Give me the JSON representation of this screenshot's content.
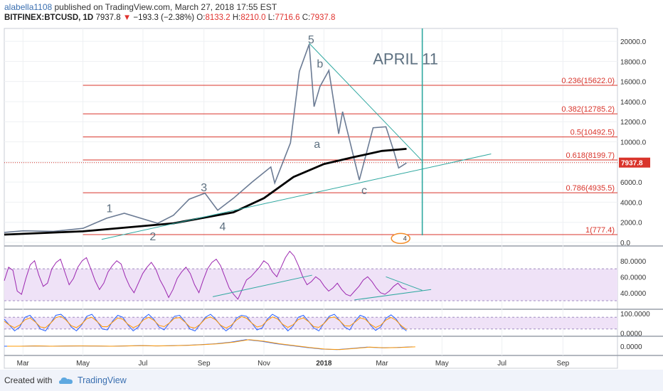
{
  "header": {
    "user": "alabella1108",
    "published": " published on TradingView.com, March 27, 2018 17:55 EST",
    "symbol": "BITFINEX:BTCUSD, 1D",
    "last": "7937.8",
    "arrow": "▼",
    "change": "−193.3 (−2.38%)",
    "o_label": "O:",
    "o_value": "8133.2",
    "h_label": "H:",
    "h_value": "8210.0",
    "l_label": "L:",
    "l_value": "7716.6",
    "c_label": "C:",
    "c_value": "7937.8"
  },
  "footer": {
    "created_with": "Created with",
    "brand": "TradingView"
  },
  "colors": {
    "price_bar": "#6b7b94",
    "ma": "#000000",
    "fib": "#d9342b",
    "trend": "#2fa8a0",
    "rsi": "#9c27b0",
    "stoch_k": "#2962ff",
    "stoch_d": "#ff9800",
    "band": "#efe2f7"
  },
  "chart_data": [
    {
      "type": "line",
      "title": "",
      "price_axis": {
        "ticks": [
          "20000.0",
          "18000.0",
          "16000.0",
          "14000.0",
          "12000.0",
          "10000.0",
          "8000.0",
          "6000.0",
          "4000.0",
          "2000.0",
          "0.0"
        ],
        "ylim": [
          0,
          20500
        ],
        "current_price": "7937.8"
      },
      "time_axis": {
        "ticks": [
          "Mar",
          "May",
          "Jul",
          "Sep",
          "Nov",
          "2018",
          "Mar",
          "May",
          "Jul",
          "Sep"
        ]
      },
      "series": [
        {
          "x": [
            "2017-02-10",
            "2017-03-01",
            "2017-04-01",
            "2017-05-01",
            "2017-05-25",
            "2017-06-12",
            "2017-07-16",
            "2017-08-01",
            "2017-08-17",
            "2017-09-02",
            "2017-09-15",
            "2017-10-01",
            "2017-10-20",
            "2017-11-08",
            "2017-11-12",
            "2017-11-28",
            "2017-12-07",
            "2017-12-17",
            "2017-12-22",
            "2017-12-28",
            "2018-01-06",
            "2018-01-16",
            "2018-01-20",
            "2018-02-06",
            "2018-02-20",
            "2018-03-05",
            "2018-03-13",
            "2018-03-18",
            "2018-03-26"
          ],
          "values": [
            1000,
            1150,
            1100,
            1400,
            2400,
            2900,
            1900,
            2700,
            4300,
            4900,
            3200,
            4400,
            6000,
            7500,
            5900,
            9900,
            17000,
            19700,
            13500,
            15500,
            17100,
            10800,
            13000,
            6200,
            11400,
            11500,
            9100,
            7400,
            7900
          ]
        },
        {
          "x": [
            "2017-02-10",
            "2017-05-01",
            "2017-08-01",
            "2017-10-01",
            "2017-11-01",
            "2017-12-01",
            "2018-01-01",
            "2018-02-01",
            "2018-03-01",
            "2018-03-26"
          ],
          "values": [
            780,
            1100,
            1900,
            3000,
            4400,
            6500,
            7800,
            8500,
            9100,
            9300
          ]
        }
      ],
      "annotations": [
        {
          "text": "APRIL 11"
        },
        {
          "text": "1"
        },
        {
          "text": "2"
        },
        {
          "text": "3"
        },
        {
          "text": "4"
        },
        {
          "text": "5"
        },
        {
          "text": "a"
        },
        {
          "text": "b"
        },
        {
          "text": "c"
        }
      ],
      "fib_levels": [
        {
          "label": "0.236(15622.0)",
          "value": 15622.0
        },
        {
          "label": "0.382(12785.2)",
          "value": 12785.2
        },
        {
          "label": "0.5(10492.5)",
          "value": 10492.5
        },
        {
          "label": "0.618(8199.7)",
          "value": 8199.7
        },
        {
          "label": "0.786(4935.5)",
          "value": 4935.5
        },
        {
          "label": "1(777.4)",
          "value": 777.4
        }
      ],
      "event_marker": "4"
    },
    {
      "type": "line",
      "title": "",
      "ticks": [
        "80.0000",
        "60.0000",
        "40.0000"
      ],
      "ylim": [
        22,
        95
      ],
      "band": [
        30,
        70
      ],
      "values": [
        55,
        72,
        68,
        42,
        38,
        58,
        75,
        80,
        62,
        48,
        52,
        70,
        78,
        82,
        66,
        50,
        58,
        72,
        80,
        84,
        70,
        55,
        44,
        52,
        66,
        74,
        80,
        76,
        60,
        48,
        40,
        52,
        64,
        72,
        78,
        70,
        56,
        46,
        34,
        44,
        58,
        66,
        72,
        64,
        50,
        40,
        56,
        70,
        78,
        82,
        74,
        60,
        46,
        38,
        32,
        44,
        56,
        60,
        66,
        72,
        80,
        76,
        66,
        60,
        72,
        84,
        92,
        86,
        74,
        60,
        50,
        54,
        60,
        56,
        48,
        42,
        46,
        52,
        44,
        38,
        36,
        42,
        48,
        56,
        60,
        54,
        46,
        40,
        38,
        42,
        48,
        52,
        46,
        44
      ]
    },
    {
      "type": "line",
      "title": "",
      "ticks": [
        "100.0000",
        "0.0000"
      ],
      "ylim": [
        -10,
        110
      ],
      "band": [
        20,
        80
      ],
      "k": [
        70,
        40,
        10,
        30,
        80,
        90,
        60,
        20,
        10,
        50,
        90,
        95,
        70,
        30,
        10,
        40,
        85,
        95,
        60,
        20,
        15,
        60,
        90,
        80,
        40,
        10,
        30,
        75,
        95,
        70,
        30,
        15,
        50,
        85,
        90,
        60,
        20,
        10,
        45,
        80,
        95,
        70,
        35,
        10,
        30,
        75,
        90,
        85,
        50,
        15,
        25,
        70,
        95,
        80,
        40,
        10,
        35,
        80,
        90,
        60,
        25,
        10,
        50,
        85,
        95,
        65,
        30,
        15,
        60,
        90,
        80,
        40,
        12,
        30,
        75,
        92,
        70,
        30,
        10
      ]
    },
    {
      "type": "line",
      "title": "",
      "ticks": [
        "0.0000"
      ],
      "ylim": [
        -2.5,
        2.5
      ],
      "values": [
        0,
        0,
        0.1,
        0,
        0.05,
        0.1,
        0.05,
        0,
        0.1,
        0.2,
        0.1,
        0.15,
        0.3,
        0.5,
        0.8,
        1.3,
        2.1,
        1.6,
        0.8,
        0.2,
        -0.4,
        -0.9,
        -1.1,
        -0.7,
        -0.3,
        -0.5,
        -0.4,
        -0.2
      ]
    }
  ]
}
